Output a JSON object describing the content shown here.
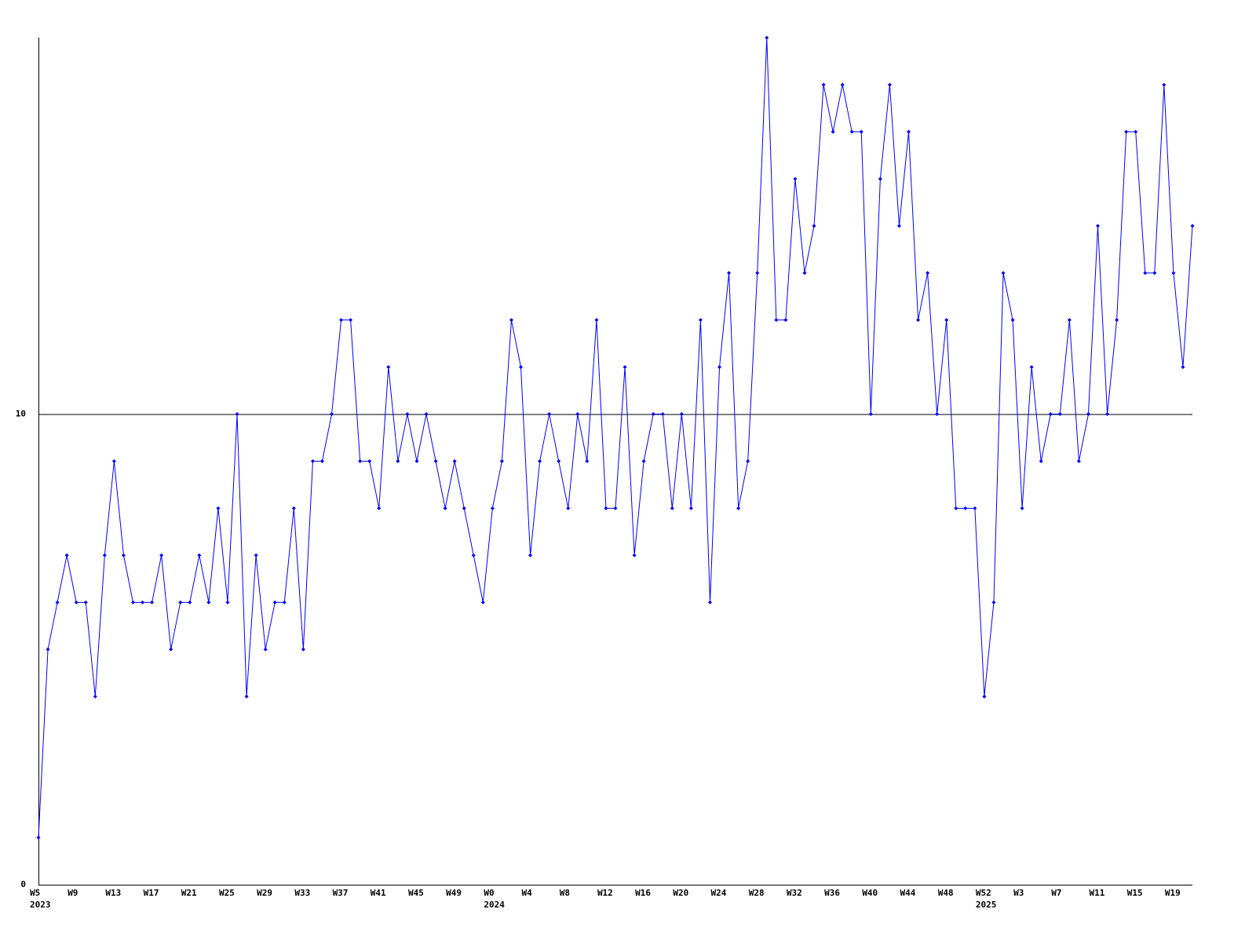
{
  "chart_data": {
    "type": "line",
    "categories": [
      "W5",
      null,
      null,
      null,
      "W9",
      null,
      null,
      null,
      "W13",
      null,
      null,
      null,
      "W17",
      null,
      null,
      null,
      "W21",
      null,
      null,
      null,
      "W25",
      null,
      null,
      null,
      "W29",
      null,
      null,
      null,
      "W33",
      null,
      null,
      null,
      "W37",
      null,
      null,
      null,
      "W41",
      null,
      null,
      null,
      "W45",
      null,
      null,
      null,
      "W49",
      null,
      null,
      null,
      "W0",
      null,
      null,
      null,
      "W4",
      null,
      null,
      null,
      "W8",
      null,
      null,
      null,
      "W12",
      null,
      null,
      null,
      "W16",
      null,
      null,
      null,
      "W20",
      null,
      null,
      null,
      "W24",
      null,
      null,
      null,
      "W28",
      null,
      null,
      null,
      "W32",
      null,
      null,
      null,
      "W36",
      null,
      null,
      null,
      "W40",
      null,
      null,
      null,
      "W44",
      null,
      null,
      null,
      "W48",
      null,
      null,
      null,
      "W52",
      null,
      null,
      null,
      "W3",
      null,
      null,
      null,
      "W7",
      null,
      null,
      null,
      "W11",
      null,
      null,
      null,
      "W15",
      null,
      null,
      null,
      "W19",
      null,
      null
    ],
    "year_labels": [
      "2023",
      null,
      null,
      null,
      null,
      null,
      null,
      null,
      null,
      null,
      null,
      null,
      null,
      null,
      null,
      null,
      null,
      null,
      null,
      null,
      null,
      null,
      null,
      null,
      null,
      null,
      null,
      null,
      null,
      null,
      null,
      null,
      null,
      null,
      null,
      null,
      null,
      null,
      null,
      null,
      null,
      null,
      null,
      null,
      null,
      null,
      null,
      null,
      "2024",
      null,
      null,
      null,
      null,
      null,
      null,
      null,
      null,
      null,
      null,
      null,
      null,
      null,
      null,
      null,
      null,
      null,
      null,
      null,
      null,
      null,
      null,
      null,
      null,
      null,
      null,
      null,
      null,
      null,
      null,
      null,
      null,
      null,
      null,
      null,
      null,
      null,
      null,
      null,
      null,
      null,
      null,
      null,
      null,
      null,
      null,
      null,
      null,
      null,
      null,
      null,
      "2025",
      null,
      null,
      null,
      null,
      null,
      null,
      null,
      null,
      null,
      null,
      null,
      null,
      null,
      null,
      null,
      null,
      null,
      null,
      null,
      null,
      null
    ],
    "series": [
      {
        "color": "#0000ff",
        "values": [
          1,
          5,
          6,
          7,
          6,
          6,
          4,
          7,
          9,
          7,
          6,
          6,
          6,
          7,
          5,
          6,
          6,
          7,
          6,
          8,
          6,
          10,
          4,
          7,
          5,
          6,
          6,
          8,
          5,
          9,
          9,
          10,
          12,
          12,
          9,
          9,
          8,
          11,
          9,
          10,
          9,
          10,
          9,
          8,
          9,
          8,
          7,
          6,
          8,
          9,
          12,
          11,
          7,
          9,
          10,
          9,
          8,
          10,
          9,
          12,
          8,
          8,
          11,
          7,
          9,
          10,
          10,
          8,
          10,
          8,
          12,
          6,
          11,
          13,
          8,
          9,
          13,
          18,
          12,
          12,
          15,
          13,
          14,
          17,
          16,
          17,
          16,
          16,
          10,
          15,
          17,
          14,
          16,
          12,
          13,
          10,
          12,
          8,
          8,
          8,
          4,
          6,
          13,
          12,
          8,
          11,
          9,
          10,
          10,
          12,
          9,
          10,
          14,
          10,
          12,
          16,
          16,
          13,
          13,
          17,
          13,
          11,
          14
        ]
      }
    ],
    "ylim": [
      0,
      18
    ],
    "yticks": [
      0,
      10
    ],
    "grid": true
  }
}
